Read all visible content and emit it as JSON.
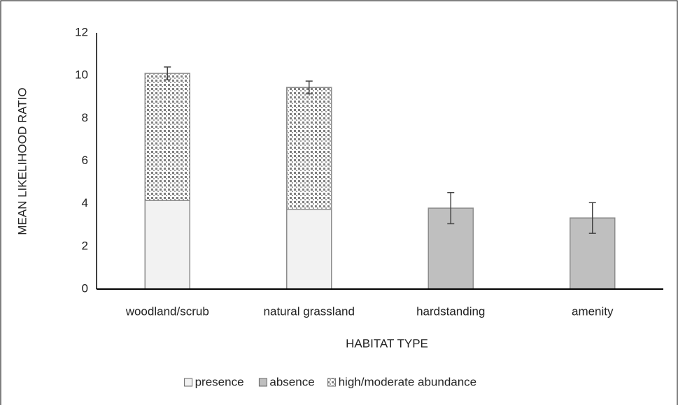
{
  "chart_data": {
    "type": "stacked_bar",
    "x_label": "HABITAT TYPE",
    "y_label": "MEAN LIKELIHOOD RATIO",
    "categories": [
      "woodland/scrub",
      "natural grassland",
      "hardstanding",
      "amenity"
    ],
    "series": [
      {
        "name": "presence",
        "color": "#f2f2f2",
        "values": [
          4.15,
          3.72,
          null,
          null
        ]
      },
      {
        "name": "absence",
        "color": "#bfbfbf",
        "values": [
          null,
          null,
          3.79,
          3.33
        ],
        "errors": [
          null,
          null,
          0.73,
          0.72
        ]
      },
      {
        "name": "high/moderate abundance",
        "color": "#7f7f7f",
        "pattern": "checker",
        "values": [
          5.95,
          5.72,
          null,
          null
        ],
        "errors": [
          0.3,
          0.3,
          null,
          null
        ]
      }
    ],
    "ylim": [
      0,
      12
    ],
    "yticks": [
      0,
      2,
      4,
      6,
      8,
      10,
      12
    ],
    "grid": false,
    "legend": "bottom"
  }
}
